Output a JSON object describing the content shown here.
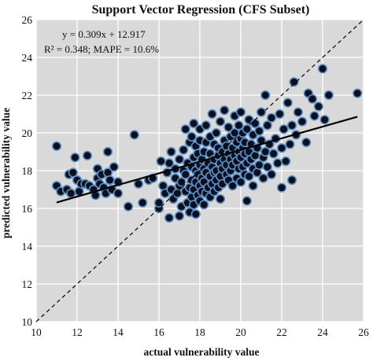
{
  "chart_data": {
    "type": "scatter",
    "title": "Support Vector Regression (CFS Subset)",
    "xlabel": "actual vulnerability  value",
    "ylabel": "predicted  vulnerability  value",
    "xlim": [
      10,
      26
    ],
    "ylim": [
      10,
      26
    ],
    "xticks": [
      "10",
      "12",
      "14",
      "16",
      "18",
      "20",
      "22",
      "24",
      "26"
    ],
    "yticks": [
      "10",
      "12",
      "14",
      "16",
      "18",
      "20",
      "22",
      "24",
      "26"
    ],
    "grid": true,
    "annotations": [
      "y = 0.309x + 12.917",
      "R² = 0.348; MAPE = 10.6%"
    ],
    "trendline": {
      "slope": 0.309,
      "intercept": 12.917,
      "x_range": [
        11,
        25.7
      ]
    },
    "identity_line": {
      "from": [
        10,
        10
      ],
      "to": [
        26,
        26
      ],
      "style": "dashed"
    },
    "colors": {
      "plot_bg": "#d9d9d9",
      "point_fill": "#0d0f1c",
      "point_edge": "#5b8fc9",
      "grid": "#ffffff"
    },
    "points": [
      [
        11.0,
        19.3
      ],
      [
        11.0,
        17.2
      ],
      [
        11.2,
        16.9
      ],
      [
        11.5,
        17.0
      ],
      [
        11.6,
        17.8
      ],
      [
        11.7,
        16.8
      ],
      [
        11.8,
        17.9
      ],
      [
        11.9,
        18.7
      ],
      [
        12.0,
        17.5
      ],
      [
        12.1,
        16.9
      ],
      [
        12.2,
        17.3
      ],
      [
        12.4,
        17.3
      ],
      [
        12.5,
        18.8
      ],
      [
        12.6,
        17.2
      ],
      [
        12.8,
        17.0
      ],
      [
        12.9,
        16.7
      ],
      [
        13.0,
        17.6
      ],
      [
        13.0,
        18.1
      ],
      [
        13.1,
        17.3
      ],
      [
        13.2,
        17.8
      ],
      [
        13.3,
        17.1
      ],
      [
        13.4,
        16.8
      ],
      [
        13.5,
        19.0
      ],
      [
        13.5,
        17.9
      ],
      [
        13.6,
        17.5
      ],
      [
        13.7,
        17.0
      ],
      [
        13.8,
        18.2
      ],
      [
        14.0,
        17.4
      ],
      [
        14.0,
        16.8
      ],
      [
        14.5,
        16.1
      ],
      [
        14.8,
        19.9
      ],
      [
        15.0,
        17.3
      ],
      [
        15.2,
        16.3
      ],
      [
        15.5,
        17.5
      ],
      [
        15.7,
        17.6
      ],
      [
        16.0,
        16.0
      ],
      [
        16.0,
        16.3
      ],
      [
        16.1,
        18.5
      ],
      [
        16.2,
        17.2
      ],
      [
        16.3,
        16.8
      ],
      [
        16.4,
        17.9
      ],
      [
        16.5,
        15.5
      ],
      [
        16.5,
        18.4
      ],
      [
        16.6,
        17.0
      ],
      [
        16.6,
        19.0
      ],
      [
        16.7,
        16.5
      ],
      [
        16.8,
        17.6
      ],
      [
        16.8,
        18.1
      ],
      [
        16.9,
        16.8
      ],
      [
        17.0,
        15.6
      ],
      [
        17.0,
        17.2
      ],
      [
        17.0,
        18.6
      ],
      [
        17.1,
        16.1
      ],
      [
        17.1,
        17.4
      ],
      [
        17.2,
        18.0
      ],
      [
        17.2,
        19.1
      ],
      [
        17.3,
        16.9
      ],
      [
        17.3,
        17.8
      ],
      [
        17.3,
        20.2
      ],
      [
        17.4,
        16.3
      ],
      [
        17.4,
        18.4
      ],
      [
        17.5,
        15.8
      ],
      [
        17.5,
        17.1
      ],
      [
        17.5,
        19.5
      ],
      [
        17.6,
        16.6
      ],
      [
        17.6,
        17.5
      ],
      [
        17.6,
        18.2
      ],
      [
        17.6,
        19.8
      ],
      [
        17.7,
        16.2
      ],
      [
        17.7,
        17.0
      ],
      [
        17.7,
        18.7
      ],
      [
        17.7,
        20.5
      ],
      [
        17.8,
        15.7
      ],
      [
        17.8,
        17.4
      ],
      [
        17.8,
        18.0
      ],
      [
        17.8,
        19.3
      ],
      [
        17.9,
        16.7
      ],
      [
        17.9,
        17.8
      ],
      [
        17.9,
        18.9
      ],
      [
        18.0,
        16.4
      ],
      [
        18.0,
        17.2
      ],
      [
        18.0,
        18.3
      ],
      [
        18.0,
        19.6
      ],
      [
        18.0,
        20.2
      ],
      [
        18.1,
        16.9
      ],
      [
        18.1,
        17.6
      ],
      [
        18.1,
        18.6
      ],
      [
        18.2,
        16.2
      ],
      [
        18.2,
        17.4
      ],
      [
        18.2,
        18.1
      ],
      [
        18.2,
        19.0
      ],
      [
        18.3,
        16.8
      ],
      [
        18.3,
        17.9
      ],
      [
        18.3,
        19.5
      ],
      [
        18.3,
        20.4
      ],
      [
        18.4,
        17.1
      ],
      [
        18.4,
        18.4
      ],
      [
        18.5,
        16.6
      ],
      [
        18.5,
        17.7
      ],
      [
        18.5,
        18.9
      ],
      [
        18.5,
        19.8
      ],
      [
        18.6,
        17.3
      ],
      [
        18.6,
        18.2
      ],
      [
        18.6,
        21.0
      ],
      [
        18.7,
        16.9
      ],
      [
        18.7,
        17.9
      ],
      [
        18.7,
        18.6
      ],
      [
        18.7,
        19.4
      ],
      [
        18.8,
        17.5
      ],
      [
        18.8,
        18.0
      ],
      [
        18.8,
        20.0
      ],
      [
        18.9,
        17.1
      ],
      [
        18.9,
        18.8
      ],
      [
        18.9,
        19.2
      ],
      [
        19.0,
        16.5
      ],
      [
        19.0,
        17.7
      ],
      [
        19.0,
        18.4
      ],
      [
        19.0,
        20.6
      ],
      [
        19.1,
        17.3
      ],
      [
        19.1,
        18.1
      ],
      [
        19.1,
        19.0
      ],
      [
        19.2,
        18.6
      ],
      [
        19.2,
        19.6
      ],
      [
        19.2,
        21.2
      ],
      [
        19.3,
        17.8
      ],
      [
        19.3,
        18.3
      ],
      [
        19.3,
        19.3
      ],
      [
        19.4,
        17.5
      ],
      [
        19.4,
        18.9
      ],
      [
        19.4,
        20.3
      ],
      [
        19.5,
        18.0
      ],
      [
        19.5,
        18.6
      ],
      [
        19.5,
        19.8
      ],
      [
        19.6,
        17.2
      ],
      [
        19.6,
        18.3
      ],
      [
        19.6,
        19.2
      ],
      [
        19.7,
        18.8
      ],
      [
        19.7,
        20.0
      ],
      [
        19.7,
        20.9
      ],
      [
        19.8,
        17.6
      ],
      [
        19.8,
        18.5
      ],
      [
        19.8,
        19.5
      ],
      [
        19.9,
        18.1
      ],
      [
        19.9,
        19.0
      ],
      [
        19.9,
        20.4
      ],
      [
        20.0,
        17.4
      ],
      [
        20.0,
        18.7
      ],
      [
        20.0,
        19.7
      ],
      [
        20.0,
        21.1
      ],
      [
        20.1,
        18.2
      ],
      [
        20.1,
        19.2
      ],
      [
        20.1,
        20.0
      ],
      [
        20.2,
        17.8
      ],
      [
        20.2,
        18.9
      ],
      [
        20.2,
        19.5
      ],
      [
        20.3,
        18.4
      ],
      [
        20.3,
        20.2
      ],
      [
        20.3,
        16.4
      ],
      [
        20.4,
        17.7
      ],
      [
        20.4,
        19.0
      ],
      [
        20.4,
        20.7
      ],
      [
        20.5,
        18.6
      ],
      [
        20.5,
        19.4
      ],
      [
        20.6,
        17.2
      ],
      [
        20.6,
        18.1
      ],
      [
        20.6,
        19.9
      ],
      [
        20.7,
        18.8
      ],
      [
        20.7,
        20.5
      ],
      [
        20.8,
        17.9
      ],
      [
        20.8,
        19.2
      ],
      [
        20.9,
        18.3
      ],
      [
        20.9,
        20.1
      ],
      [
        21.0,
        19.6
      ],
      [
        21.0,
        21.1
      ],
      [
        21.1,
        17.6
      ],
      [
        21.1,
        18.7
      ],
      [
        21.2,
        19.0
      ],
      [
        21.2,
        22.0
      ],
      [
        21.3,
        18.2
      ],
      [
        21.3,
        20.4
      ],
      [
        21.4,
        19.4
      ],
      [
        21.5,
        17.8
      ],
      [
        21.5,
        20.8
      ],
      [
        21.6,
        18.9
      ],
      [
        21.7,
        19.7
      ],
      [
        21.8,
        18.4
      ],
      [
        21.9,
        21.0
      ],
      [
        22.0,
        17.1
      ],
      [
        22.0,
        19.2
      ],
      [
        22.1,
        20.2
      ],
      [
        22.2,
        18.5
      ],
      [
        22.3,
        21.6
      ],
      [
        22.4,
        19.4
      ],
      [
        22.5,
        17.5
      ],
      [
        22.5,
        20.4
      ],
      [
        22.6,
        22.7
      ],
      [
        22.7,
        19.9
      ],
      [
        22.8,
        21.1
      ],
      [
        23.0,
        20.6
      ],
      [
        23.2,
        19.5
      ],
      [
        23.3,
        22.1
      ],
      [
        23.5,
        21.8
      ],
      [
        23.6,
        20.9
      ],
      [
        23.8,
        21.4
      ],
      [
        24.0,
        23.4
      ],
      [
        24.1,
        20.7
      ],
      [
        24.3,
        22.0
      ],
      [
        25.7,
        22.1
      ]
    ]
  }
}
